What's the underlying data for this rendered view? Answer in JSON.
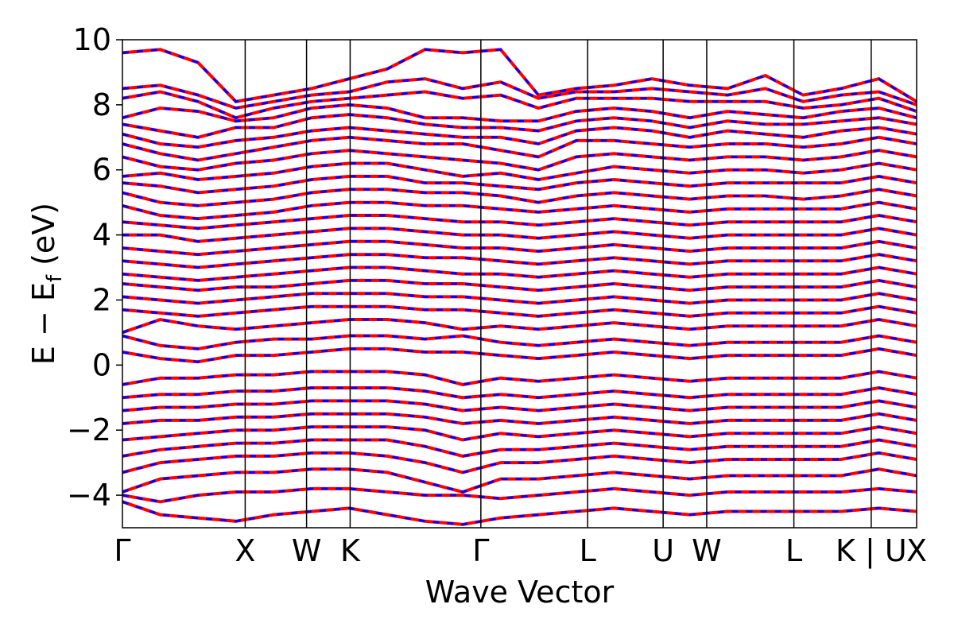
{
  "chart_data": {
    "type": "line",
    "title": "",
    "xlabel": "Wave Vector",
    "ylabel_parts": {
      "main": "E − E",
      "sub": "f",
      "unit": " (eV)"
    },
    "ylim": [
      -5,
      10
    ],
    "yticks": [
      -4,
      -2,
      0,
      2,
      4,
      6,
      8,
      10
    ],
    "ytick_labels": [
      "−4",
      "−2",
      "0",
      "2",
      "4",
      "6",
      "8",
      "10"
    ],
    "xlim": [
      0,
      6.47
    ],
    "kpoints": [
      {
        "label": "Γ",
        "x": 0
      },
      {
        "label": "X",
        "x": 1.0
      },
      {
        "label": "W",
        "x": 1.5
      },
      {
        "label": "K",
        "x": 1.855
      },
      {
        "label": "Γ",
        "x": 2.92
      },
      {
        "label": "L",
        "x": 3.79
      },
      {
        "label": "U",
        "x": 4.405
      },
      {
        "label": "W",
        "x": 4.76
      },
      {
        "label": "L",
        "x": 5.47
      },
      {
        "label": "K | U",
        "x": 6.1
      },
      {
        "label": "X",
        "x": 6.47
      }
    ],
    "series_colors": {
      "spin_up": "#ff0000",
      "spin_down": "#0000ff"
    },
    "line_styles": {
      "spin_up": "solid",
      "spin_down": "dashed"
    },
    "grid": false,
    "legend": "none",
    "bands": [
      [
        9.6,
        9.7,
        9.3,
        8.1,
        8.3,
        8.5,
        8.8,
        9.1,
        9.7,
        9.6,
        9.7,
        8.3,
        8.5,
        8.6,
        8.8,
        8.6,
        8.5,
        8.9,
        8.3,
        8.5,
        8.8,
        8.1
      ],
      [
        8.5,
        8.6,
        8.3,
        7.9,
        8.1,
        8.3,
        8.4,
        8.7,
        8.8,
        8.5,
        8.7,
        8.2,
        8.4,
        8.4,
        8.5,
        8.4,
        8.3,
        8.5,
        8.1,
        8.3,
        8.4,
        8.0
      ],
      [
        8.2,
        8.4,
        8.1,
        7.6,
        7.9,
        8.1,
        8.2,
        8.3,
        8.4,
        8.2,
        8.3,
        7.9,
        8.2,
        8.2,
        8.2,
        8.1,
        8.1,
        8.1,
        7.9,
        8.0,
        8.2,
        7.8
      ],
      [
        7.6,
        7.9,
        7.8,
        7.5,
        7.6,
        7.9,
        8.0,
        7.9,
        7.6,
        7.6,
        7.5,
        7.5,
        7.8,
        7.9,
        7.8,
        7.6,
        7.8,
        7.7,
        7.6,
        7.8,
        7.9,
        7.6
      ],
      [
        7.4,
        7.2,
        7.0,
        7.3,
        7.3,
        7.6,
        7.7,
        7.6,
        7.4,
        7.3,
        7.3,
        7.2,
        7.5,
        7.6,
        7.5,
        7.3,
        7.5,
        7.4,
        7.4,
        7.5,
        7.6,
        7.4
      ],
      [
        7.1,
        6.8,
        6.7,
        6.9,
        7.0,
        7.2,
        7.3,
        7.2,
        7.1,
        7.0,
        7.0,
        6.8,
        7.2,
        7.3,
        7.2,
        7.0,
        7.2,
        7.1,
        7.0,
        7.2,
        7.3,
        7.1
      ],
      [
        6.8,
        6.5,
        6.3,
        6.5,
        6.7,
        6.9,
        7.0,
        6.9,
        6.8,
        6.8,
        6.6,
        6.4,
        6.9,
        6.9,
        6.8,
        6.7,
        6.8,
        6.8,
        6.7,
        6.8,
        7.0,
        6.8
      ],
      [
        6.4,
        6.1,
        6.0,
        6.2,
        6.3,
        6.5,
        6.6,
        6.5,
        6.4,
        6.3,
        6.2,
        6.0,
        6.4,
        6.5,
        6.4,
        6.3,
        6.4,
        6.4,
        6.3,
        6.4,
        6.6,
        6.4
      ],
      [
        5.8,
        5.9,
        5.7,
        5.8,
        5.9,
        6.1,
        6.2,
        6.2,
        6.0,
        5.8,
        5.9,
        5.7,
        5.9,
        6.1,
        6.0,
        5.9,
        6.0,
        6.0,
        5.9,
        6.0,
        6.2,
        6.0
      ],
      [
        5.6,
        5.5,
        5.3,
        5.4,
        5.5,
        5.7,
        5.8,
        5.8,
        5.6,
        5.6,
        5.5,
        5.4,
        5.6,
        5.7,
        5.6,
        5.5,
        5.6,
        5.6,
        5.6,
        5.6,
        5.8,
        5.6
      ],
      [
        5.3,
        5.0,
        4.9,
        5.0,
        5.1,
        5.3,
        5.4,
        5.4,
        5.3,
        5.3,
        5.2,
        5.0,
        5.2,
        5.3,
        5.2,
        5.1,
        5.2,
        5.2,
        5.1,
        5.2,
        5.4,
        5.2
      ],
      [
        4.9,
        4.6,
        4.5,
        4.6,
        4.7,
        4.9,
        5.0,
        5.0,
        4.9,
        4.9,
        4.8,
        4.7,
        4.8,
        4.9,
        4.8,
        4.7,
        4.8,
        4.8,
        4.8,
        4.8,
        5.0,
        4.8
      ],
      [
        4.4,
        4.3,
        4.2,
        4.3,
        4.4,
        4.5,
        4.6,
        4.6,
        4.5,
        4.4,
        4.4,
        4.3,
        4.4,
        4.5,
        4.4,
        4.3,
        4.4,
        4.4,
        4.4,
        4.4,
        4.6,
        4.4
      ],
      [
        4.0,
        4.0,
        3.8,
        3.9,
        4.0,
        4.1,
        4.2,
        4.2,
        4.1,
        4.0,
        4.0,
        3.9,
        4.0,
        4.1,
        4.0,
        3.9,
        4.0,
        4.0,
        4.0,
        4.0,
        4.2,
        4.0
      ],
      [
        3.6,
        3.5,
        3.4,
        3.5,
        3.6,
        3.7,
        3.8,
        3.8,
        3.7,
        3.6,
        3.6,
        3.5,
        3.6,
        3.7,
        3.6,
        3.5,
        3.6,
        3.6,
        3.6,
        3.6,
        3.8,
        3.6
      ],
      [
        3.2,
        3.1,
        3.0,
        3.1,
        3.2,
        3.3,
        3.4,
        3.4,
        3.3,
        3.3,
        3.2,
        3.1,
        3.2,
        3.3,
        3.2,
        3.1,
        3.2,
        3.2,
        3.2,
        3.2,
        3.4,
        3.2
      ],
      [
        2.8,
        2.7,
        2.6,
        2.7,
        2.8,
        2.9,
        3.0,
        3.0,
        2.9,
        2.8,
        2.8,
        2.7,
        2.8,
        2.9,
        2.8,
        2.7,
        2.8,
        2.8,
        2.8,
        2.8,
        3.0,
        2.8
      ],
      [
        2.5,
        2.4,
        2.3,
        2.4,
        2.4,
        2.5,
        2.6,
        2.6,
        2.5,
        2.5,
        2.4,
        2.3,
        2.4,
        2.5,
        2.4,
        2.3,
        2.4,
        2.4,
        2.4,
        2.4,
        2.6,
        2.4
      ],
      [
        2.1,
        2.0,
        1.9,
        2.0,
        2.1,
        2.2,
        2.2,
        2.2,
        2.1,
        2.1,
        2.0,
        1.9,
        2.0,
        2.1,
        2.0,
        1.9,
        2.0,
        2.0,
        2.0,
        2.0,
        2.2,
        2.0
      ],
      [
        1.7,
        1.6,
        1.5,
        1.6,
        1.7,
        1.8,
        1.8,
        1.8,
        1.7,
        1.7,
        1.6,
        1.5,
        1.6,
        1.7,
        1.6,
        1.5,
        1.6,
        1.6,
        1.6,
        1.6,
        1.8,
        1.6
      ],
      [
        1.0,
        1.4,
        1.2,
        1.1,
        1.2,
        1.3,
        1.4,
        1.4,
        1.3,
        1.1,
        1.2,
        1.1,
        1.2,
        1.3,
        1.2,
        1.1,
        1.2,
        1.2,
        1.2,
        1.2,
        1.4,
        1.2
      ],
      [
        0.9,
        0.6,
        0.5,
        0.7,
        0.8,
        0.8,
        0.9,
        0.9,
        0.8,
        0.9,
        0.7,
        0.6,
        0.7,
        0.8,
        0.7,
        0.6,
        0.7,
        0.7,
        0.7,
        0.7,
        0.9,
        0.7
      ],
      [
        0.4,
        0.2,
        0.1,
        0.3,
        0.3,
        0.4,
        0.5,
        0.5,
        0.4,
        0.4,
        0.3,
        0.2,
        0.3,
        0.4,
        0.3,
        0.2,
        0.3,
        0.3,
        0.3,
        0.3,
        0.5,
        0.3
      ],
      [
        -0.6,
        -0.4,
        -0.4,
        -0.3,
        -0.3,
        -0.2,
        -0.2,
        -0.2,
        -0.3,
        -0.6,
        -0.4,
        -0.5,
        -0.4,
        -0.3,
        -0.4,
        -0.5,
        -0.4,
        -0.4,
        -0.4,
        -0.4,
        -0.2,
        -0.4
      ],
      [
        -1.0,
        -0.9,
        -0.9,
        -0.8,
        -0.8,
        -0.7,
        -0.7,
        -0.7,
        -0.8,
        -1.0,
        -0.9,
        -1.0,
        -0.9,
        -0.8,
        -0.9,
        -1.0,
        -0.9,
        -0.9,
        -0.9,
        -0.9,
        -0.7,
        -0.9
      ],
      [
        -1.4,
        -1.3,
        -1.3,
        -1.2,
        -1.2,
        -1.1,
        -1.1,
        -1.1,
        -1.2,
        -1.4,
        -1.3,
        -1.4,
        -1.3,
        -1.2,
        -1.3,
        -1.4,
        -1.3,
        -1.3,
        -1.3,
        -1.3,
        -1.1,
        -1.3
      ],
      [
        -1.8,
        -1.7,
        -1.7,
        -1.6,
        -1.6,
        -1.5,
        -1.5,
        -1.5,
        -1.6,
        -1.8,
        -1.7,
        -1.8,
        -1.7,
        -1.6,
        -1.7,
        -1.8,
        -1.7,
        -1.7,
        -1.7,
        -1.7,
        -1.5,
        -1.7
      ],
      [
        -2.3,
        -2.2,
        -2.1,
        -2.0,
        -2.0,
        -1.9,
        -1.9,
        -1.9,
        -2.0,
        -2.3,
        -2.1,
        -2.2,
        -2.1,
        -2.0,
        -2.1,
        -2.2,
        -2.1,
        -2.1,
        -2.1,
        -2.1,
        -1.9,
        -2.1
      ],
      [
        -2.8,
        -2.6,
        -2.5,
        -2.4,
        -2.4,
        -2.3,
        -2.3,
        -2.3,
        -2.5,
        -2.8,
        -2.6,
        -2.6,
        -2.5,
        -2.4,
        -2.5,
        -2.6,
        -2.5,
        -2.5,
        -2.5,
        -2.5,
        -2.3,
        -2.5
      ],
      [
        -3.3,
        -3.0,
        -2.9,
        -2.8,
        -2.8,
        -2.7,
        -2.7,
        -2.8,
        -3.0,
        -3.3,
        -3.0,
        -3.0,
        -2.9,
        -2.8,
        -2.9,
        -3.0,
        -2.9,
        -2.9,
        -2.9,
        -2.9,
        -2.7,
        -2.9
      ],
      [
        -3.9,
        -3.5,
        -3.4,
        -3.3,
        -3.3,
        -3.2,
        -3.2,
        -3.3,
        -3.6,
        -3.9,
        -3.5,
        -3.5,
        -3.4,
        -3.3,
        -3.4,
        -3.5,
        -3.4,
        -3.4,
        -3.4,
        -3.4,
        -3.2,
        -3.4
      ],
      [
        -4.0,
        -4.2,
        -4.0,
        -3.9,
        -3.9,
        -3.8,
        -3.8,
        -3.9,
        -4.0,
        -4.0,
        -4.1,
        -4.0,
        -3.9,
        -3.8,
        -3.9,
        -4.0,
        -3.9,
        -3.9,
        -3.9,
        -3.9,
        -3.8,
        -3.9
      ],
      [
        -4.2,
        -4.6,
        -4.7,
        -4.8,
        -4.6,
        -4.5,
        -4.4,
        -4.6,
        -4.8,
        -4.9,
        -4.7,
        -4.6,
        -4.5,
        -4.4,
        -4.5,
        -4.6,
        -4.5,
        -4.5,
        -4.5,
        -4.5,
        -4.4,
        -4.5
      ]
    ]
  }
}
